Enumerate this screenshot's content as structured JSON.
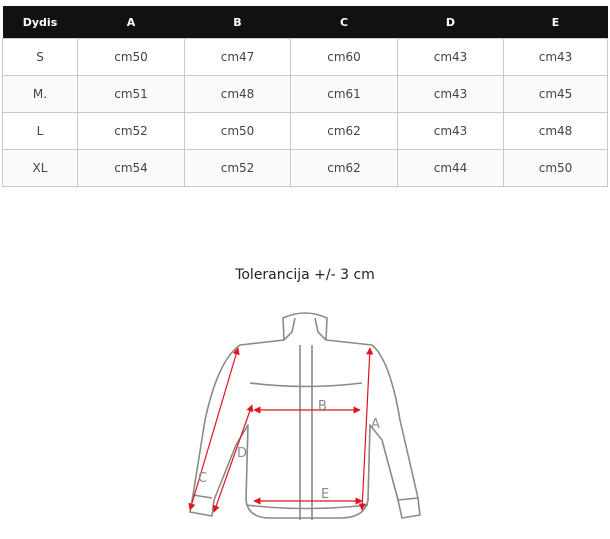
{
  "table": {
    "headers": [
      "Dydis",
      "A",
      "B",
      "C",
      "D",
      "E"
    ],
    "rows": [
      [
        "S",
        "cm50",
        "cm47",
        "cm60",
        "cm43",
        "cm43"
      ],
      [
        "M.",
        "cm51",
        "cm48",
        "cm61",
        "cm43",
        "cm45"
      ],
      [
        "L",
        "cm52",
        "cm50",
        "cm62",
        "cm43",
        "cm48"
      ],
      [
        "XL",
        "cm54",
        "cm52",
        "cm62",
        "cm44",
        "cm50"
      ]
    ]
  },
  "tolerance": "Tolerancija +/- 3 cm",
  "diagram": {
    "labels": {
      "A": "A",
      "B": "B",
      "C": "C",
      "D": "D",
      "E": "E"
    },
    "arrow_color": "#e0141e",
    "outline_color": "#8a8a8a"
  }
}
